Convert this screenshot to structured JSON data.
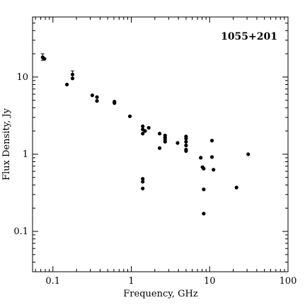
{
  "chart_data": {
    "type": "scatter",
    "title": "",
    "xlabel": "Frequency, GHz",
    "ylabel": "Flux Density, Jy",
    "xscale": "log",
    "yscale": "log",
    "xlim": [
      0.055,
      100
    ],
    "ylim": [
      0.03,
      60
    ],
    "grid": false,
    "annotation": "1055+201",
    "x_ticks": [
      {
        "value": 0.1,
        "label": "0.1"
      },
      {
        "value": 1,
        "label": "1"
      },
      {
        "value": 10,
        "label": "10"
      },
      {
        "value": 100,
        "label": "100"
      }
    ],
    "y_ticks": [
      {
        "value": 0.1,
        "label": "0.1"
      },
      {
        "value": 1,
        "label": "1"
      },
      {
        "value": 10,
        "label": "10"
      }
    ],
    "series": [
      {
        "color": "#000000",
        "points": [
          {
            "x": 0.074,
            "y": 18.0,
            "yerr_low": 16.5,
            "yerr_high": 20.0
          },
          {
            "x": 0.078,
            "y": 17.2
          },
          {
            "x": 0.151,
            "y": 8.0
          },
          {
            "x": 0.178,
            "y": 10.8,
            "yerr_low": 9.5,
            "yerr_high": 12.0
          },
          {
            "x": 0.178,
            "y": 9.6
          },
          {
            "x": 0.318,
            "y": 5.8
          },
          {
            "x": 0.365,
            "y": 5.5
          },
          {
            "x": 0.365,
            "y": 4.9
          },
          {
            "x": 0.61,
            "y": 4.8
          },
          {
            "x": 0.61,
            "y": 4.6
          },
          {
            "x": 0.96,
            "y": 3.1
          },
          {
            "x": 1.4,
            "y": 2.3
          },
          {
            "x": 1.4,
            "y": 2.1
          },
          {
            "x": 1.4,
            "y": 1.85
          },
          {
            "x": 1.5,
            "y": 2.0
          },
          {
            "x": 1.67,
            "y": 2.2
          },
          {
            "x": 1.4,
            "y": 0.48
          },
          {
            "x": 1.4,
            "y": 0.44
          },
          {
            "x": 1.4,
            "y": 0.36
          },
          {
            "x": 2.3,
            "y": 1.85
          },
          {
            "x": 2.3,
            "y": 1.2
          },
          {
            "x": 2.7,
            "y": 1.75
          },
          {
            "x": 2.7,
            "y": 1.65
          },
          {
            "x": 2.7,
            "y": 1.55
          },
          {
            "x": 2.7,
            "y": 1.45
          },
          {
            "x": 3.9,
            "y": 1.4
          },
          {
            "x": 5.0,
            "y": 1.7
          },
          {
            "x": 5.0,
            "y": 1.6
          },
          {
            "x": 5.0,
            "y": 1.45
          },
          {
            "x": 5.0,
            "y": 1.3
          },
          {
            "x": 5.0,
            "y": 1.15
          },
          {
            "x": 5.0,
            "y": 1.1
          },
          {
            "x": 7.7,
            "y": 0.9
          },
          {
            "x": 8.1,
            "y": 0.68
          },
          {
            "x": 8.4,
            "y": 0.65
          },
          {
            "x": 8.4,
            "y": 0.35
          },
          {
            "x": 8.4,
            "y": 0.17
          },
          {
            "x": 10.7,
            "y": 1.5
          },
          {
            "x": 10.7,
            "y": 0.92
          },
          {
            "x": 11.2,
            "y": 0.63
          },
          {
            "x": 22.0,
            "y": 0.37
          },
          {
            "x": 31.0,
            "y": 1.0
          }
        ]
      }
    ]
  }
}
